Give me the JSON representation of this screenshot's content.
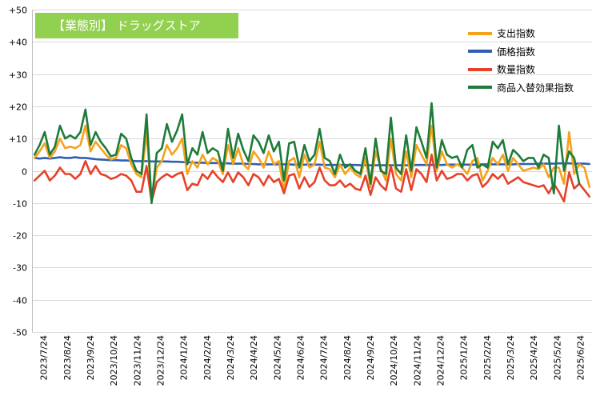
{
  "chart_data": {
    "type": "line",
    "title": "【業態別】 ドラッグストア",
    "xlabel": "",
    "ylabel": "",
    "ylim": [
      -50,
      50
    ],
    "y_ticks": [
      "+50",
      "+40",
      "+30",
      "+20",
      "+10",
      "0",
      "-10",
      "-20",
      "-30",
      "-40",
      "-50"
    ],
    "x_tick_labels": [
      "2023/7/24",
      "2023/8/24",
      "2023/9/24",
      "2023/10/24",
      "2023/11/24",
      "2023/12/24",
      "2024/1/24",
      "2024/2/24",
      "2024/3/24",
      "2024/4/24",
      "2024/5/24",
      "2024/6/24",
      "2024/7/24",
      "2024/8/24",
      "2024/9/24",
      "2024/10/24",
      "2024/11/24",
      "2024/12/24",
      "2025/1/24",
      "2025/2/24",
      "2025/3/24",
      "2025/4/24",
      "2025/5/24",
      "2025/6/24"
    ],
    "legend_position": "top-right",
    "grid": "horizontal",
    "series": [
      {
        "name": "支出指数",
        "color": "#f5a21b",
        "values": [
          4,
          6,
          8.5,
          4,
          6,
          10,
          7,
          7.5,
          7,
          8,
          14,
          6,
          9,
          7,
          5,
          3.5,
          4,
          8,
          7,
          2,
          -1,
          -2,
          12,
          -9,
          1,
          3,
          8,
          5,
          7,
          10,
          -1,
          3,
          1,
          5,
          2,
          4,
          3,
          -1,
          8,
          2,
          7,
          2,
          0.5,
          6,
          4,
          1,
          6,
          2,
          3,
          -6,
          3,
          4,
          -2,
          5,
          1,
          2,
          9,
          1,
          0.5,
          -2,
          2,
          -1,
          1,
          -1,
          -2,
          4,
          -5,
          6,
          1,
          -3,
          10,
          -1,
          -3,
          6,
          -2,
          8,
          5,
          2,
          14,
          0,
          6,
          2,
          1,
          2,
          1,
          -1,
          3,
          4,
          -3,
          0,
          4,
          2,
          5,
          0,
          4,
          2,
          0,
          0.5,
          1,
          0.5,
          2,
          -2,
          1,
          1,
          -4,
          12,
          -1,
          2,
          1,
          -5
        ]
      },
      {
        "name": "価格指数",
        "color": "#2e5fb4",
        "values": [
          4,
          3.8,
          4,
          3.8,
          4,
          4.2,
          4,
          4,
          4.2,
          4,
          4,
          3.8,
          3.6,
          3.5,
          3.4,
          3.3,
          3.3,
          3.2,
          3.2,
          3.1,
          3,
          3,
          3,
          2.9,
          2.9,
          2.9,
          2.9,
          2.8,
          2.8,
          2.7,
          2.6,
          2.6,
          2.5,
          2.5,
          2.4,
          2.4,
          2.4,
          2.3,
          2.3,
          2.2,
          2.2,
          2.2,
          2.1,
          2.1,
          2,
          2,
          2,
          2,
          2,
          2,
          2,
          1.9,
          1.9,
          1.9,
          1.9,
          1.9,
          1.9,
          1.8,
          1.8,
          1.8,
          1.8,
          1.8,
          1.8,
          1.8,
          1.7,
          1.7,
          1.7,
          1.7,
          1.7,
          1.7,
          1.7,
          1.7,
          1.7,
          1.7,
          1.7,
          1.8,
          1.8,
          1.8,
          1.8,
          1.8,
          1.8,
          1.9,
          1.9,
          1.9,
          1.9,
          1.9,
          1.9,
          1.9,
          2,
          2,
          2,
          2,
          2,
          2,
          2,
          2.1,
          2.1,
          2.1,
          2.1,
          2.2,
          2.2,
          2.2,
          2.2,
          2.3,
          2.3,
          2.3,
          2.2,
          2.2,
          2.2,
          2.1
        ]
      },
      {
        "name": "数量指数",
        "color": "#e6412b",
        "values": [
          -3,
          -1.5,
          0,
          -3,
          -1.5,
          1,
          -1,
          -1,
          -2.5,
          -1,
          3,
          -1,
          1.5,
          -1,
          -1.5,
          -2.5,
          -2,
          -1,
          -1.5,
          -3,
          -6.5,
          -6.5,
          1.5,
          -9.5,
          -3.5,
          -2,
          -1,
          -2,
          -1,
          -0.5,
          -6,
          -4,
          -4.5,
          -1,
          -2.5,
          0,
          -2,
          -3.5,
          -0.5,
          -3.5,
          -0.5,
          -2,
          -4.5,
          -1,
          -2,
          -4.5,
          -1.5,
          -3.5,
          -2.5,
          -7,
          -1.5,
          -1,
          -5.5,
          -2,
          -5,
          -3.5,
          1,
          -3,
          -4.5,
          -4.5,
          -3,
          -5,
          -4,
          -5.5,
          -6,
          -1.5,
          -7.5,
          -2,
          -4.5,
          -6,
          1.5,
          -5.5,
          -6.5,
          0.5,
          -6,
          0.5,
          -1,
          -3.5,
          5,
          -3,
          0,
          -2.5,
          -2,
          -1,
          -1,
          -3,
          -1.5,
          -1,
          -5,
          -3.5,
          -1,
          -2.5,
          -1,
          -4,
          -3,
          -2,
          -3.5,
          -4,
          -4.5,
          -5,
          -4.5,
          -7,
          -4,
          -6.5,
          -9.5,
          -0.5,
          -5.5,
          -4,
          -6,
          -8
        ]
      },
      {
        "name": "商品入替効果指数",
        "color": "#1e7b3a",
        "values": [
          5,
          8,
          12,
          5,
          7.5,
          14,
          10,
          11,
          10,
          12,
          19,
          8,
          12,
          9,
          7,
          4.5,
          5,
          11.5,
          10,
          4,
          0,
          -1,
          17.5,
          -10,
          5.5,
          7,
          14.5,
          9,
          12.5,
          17.5,
          2,
          7,
          5,
          12,
          5.5,
          7,
          6,
          0,
          13,
          4,
          11.5,
          6.5,
          3,
          11,
          9,
          5.5,
          11,
          6,
          9,
          -3,
          8.5,
          9,
          1,
          8,
          3,
          5,
          13,
          4,
          3,
          -1,
          5,
          1,
          2,
          0,
          -1,
          7,
          -4,
          10,
          0,
          -1,
          16.5,
          1,
          -1,
          11,
          0,
          13.5,
          9,
          4,
          21,
          1,
          9.5,
          5,
          4,
          4.5,
          1,
          6.5,
          8,
          1,
          2,
          1,
          9,
          7,
          9.5,
          2,
          6.5,
          5,
          3,
          4,
          4,
          1,
          5,
          4,
          -7,
          14,
          0,
          6,
          4,
          -4
        ]
      }
    ]
  }
}
